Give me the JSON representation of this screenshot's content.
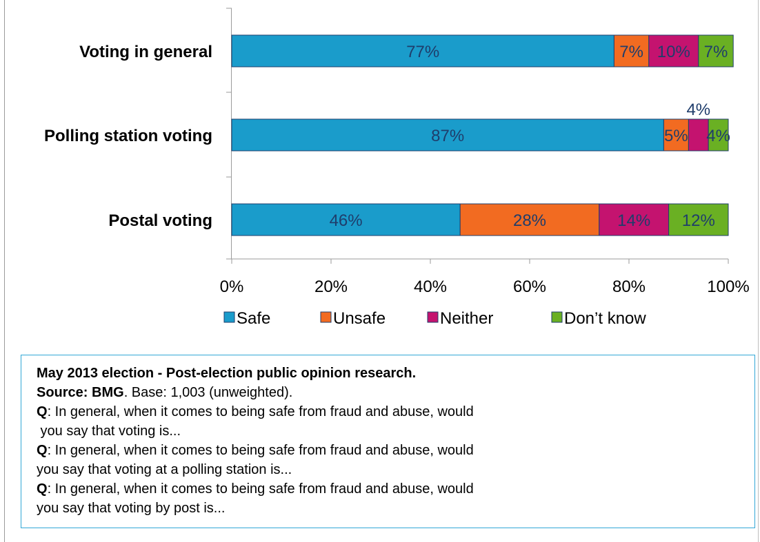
{
  "chart_data": {
    "type": "bar",
    "orientation": "horizontal",
    "stacked": true,
    "categories": [
      "Voting in general",
      "Polling station voting",
      "Postal voting"
    ],
    "series": [
      {
        "name": "Safe",
        "color": "#1a9ccb",
        "values": [
          77,
          87,
          46
        ],
        "labels": [
          "77%",
          "87%",
          "46%"
        ]
      },
      {
        "name": "Unsafe",
        "color": "#f26b21",
        "values": [
          7,
          5,
          28
        ],
        "labels": [
          "7%",
          "5%",
          "28%"
        ]
      },
      {
        "name": "Neither",
        "color": "#c4136f",
        "values": [
          10,
          4,
          14
        ],
        "labels": [
          "10%",
          "4%",
          "14%"
        ]
      },
      {
        "name": "Don’t know",
        "color": "#6ab023",
        "values": [
          7,
          4,
          12
        ],
        "labels": [
          "7%",
          "4%",
          "12%"
        ]
      }
    ],
    "xlim": [
      0,
      100
    ],
    "x_ticks": [
      "0%",
      "20%",
      "40%",
      "60%",
      "80%",
      "100%"
    ],
    "legend_position": "bottom",
    "label_color": "#1f3d6b"
  },
  "notes": {
    "title": "May 2013 election - Post-election public opinion research.",
    "source_label": "Source: BMG",
    "source_rest": ". Base: 1,003 (unweighted).",
    "q_label": "Q",
    "q1_a": ": In general, when it comes to being safe from fraud and abuse, would",
    "q1_b": " you say that voting is...",
    "q2_a": ": In general, when it comes to being safe from fraud and abuse, would",
    "q2_b": "you say that voting at a polling station is...",
    "q3_a": ": In general, when it comes to being safe from fraud and abuse, would",
    "q3_b": "you say that voting by post is..."
  }
}
